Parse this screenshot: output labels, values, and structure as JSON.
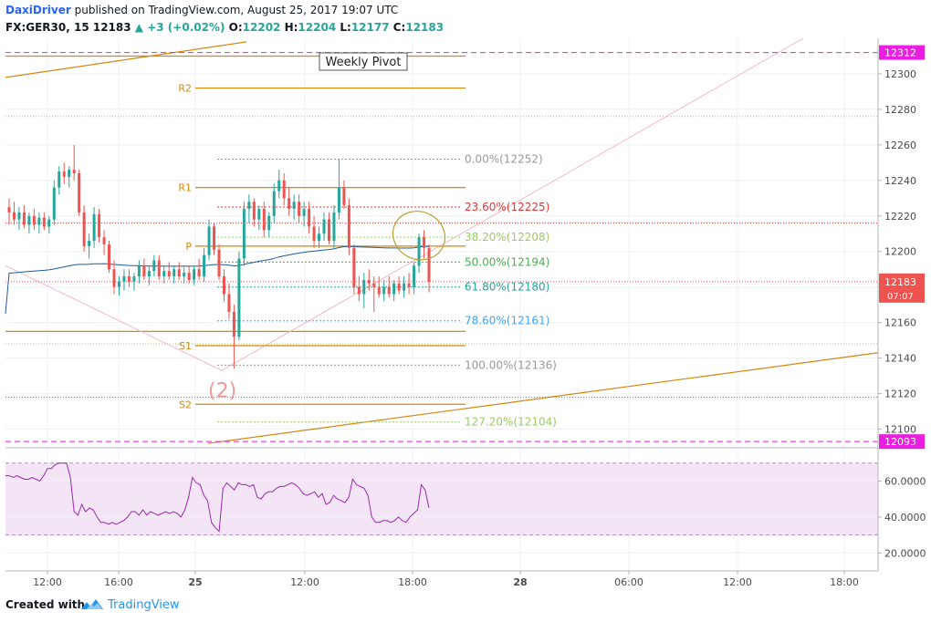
{
  "header": {
    "author": "DaxiDriver",
    "published_text": "published on TradingView.com, August 25, 2017 19:07 UTC",
    "symbol": "FX:GER30, 15",
    "last": "12183",
    "change": "▲ +3 (+0.02%)",
    "o_label": "O:",
    "o_value": "12202",
    "h_label": "H:",
    "h_value": "12204",
    "l_label": "L:",
    "l_value": "12177",
    "c_label": "C:",
    "c_value": "12183"
  },
  "footer": {
    "created_with": "Created with",
    "brand": "TradingView"
  },
  "colors": {
    "bull": "#26a69a",
    "bear": "#ef5350",
    "pivot": "#d4880f",
    "ma": "#1e5b9c",
    "rsi": "#9c27b0",
    "rsi_bg": "#f3e5f5",
    "magenta": "#e91ee0",
    "last_bg": "#ef5350"
  },
  "chart_data": [
    {
      "type": "candlestick",
      "symbol": "FX:GER30",
      "interval": "15",
      "ylim": [
        12090,
        12320
      ],
      "y_ticks": [
        "12300",
        "12280",
        "12260",
        "12240",
        "12220",
        "12200",
        "12180",
        "12160",
        "12140",
        "12120",
        "12100"
      ],
      "x_ticks": [
        "12:00",
        "16:00",
        "25",
        "12:00",
        "18:00",
        "28",
        "06:00",
        "12:00",
        "18:00"
      ],
      "last_price": "12183",
      "countdown": "07:07",
      "marked_prices": [
        "12312",
        "12093"
      ],
      "candles": [
        {
          "o": 12225,
          "h": 12230,
          "l": 12215,
          "c": 12222
        },
        {
          "o": 12222,
          "h": 12228,
          "l": 12215,
          "c": 12218
        },
        {
          "o": 12218,
          "h": 12225,
          "l": 12212,
          "c": 12222
        },
        {
          "o": 12222,
          "h": 12226,
          "l": 12213,
          "c": 12215
        },
        {
          "o": 12215,
          "h": 12222,
          "l": 12210,
          "c": 12220
        },
        {
          "o": 12220,
          "h": 12224,
          "l": 12212,
          "c": 12215
        },
        {
          "o": 12215,
          "h": 12222,
          "l": 12210,
          "c": 12219
        },
        {
          "o": 12219,
          "h": 12222,
          "l": 12212,
          "c": 12214
        },
        {
          "o": 12214,
          "h": 12220,
          "l": 12210,
          "c": 12218
        },
        {
          "o": 12218,
          "h": 12240,
          "l": 12215,
          "c": 12236
        },
        {
          "o": 12236,
          "h": 12248,
          "l": 12232,
          "c": 12245
        },
        {
          "o": 12245,
          "h": 12250,
          "l": 12238,
          "c": 12242
        },
        {
          "o": 12242,
          "h": 12248,
          "l": 12236,
          "c": 12246
        },
        {
          "o": 12246,
          "h": 12260,
          "l": 12240,
          "c": 12244
        },
        {
          "o": 12244,
          "h": 12246,
          "l": 12220,
          "c": 12222
        },
        {
          "o": 12222,
          "h": 12226,
          "l": 12200,
          "c": 12203
        },
        {
          "o": 12203,
          "h": 12210,
          "l": 12196,
          "c": 12206
        },
        {
          "o": 12206,
          "h": 12225,
          "l": 12202,
          "c": 12221
        },
        {
          "o": 12221,
          "h": 12224,
          "l": 12205,
          "c": 12208
        },
        {
          "o": 12208,
          "h": 12212,
          "l": 12198,
          "c": 12204
        },
        {
          "o": 12204,
          "h": 12206,
          "l": 12188,
          "c": 12190
        },
        {
          "o": 12190,
          "h": 12195,
          "l": 12176,
          "c": 12180
        },
        {
          "o": 12180,
          "h": 12186,
          "l": 12175,
          "c": 12183
        },
        {
          "o": 12183,
          "h": 12190,
          "l": 12178,
          "c": 12186
        },
        {
          "o": 12186,
          "h": 12190,
          "l": 12180,
          "c": 12183
        },
        {
          "o": 12183,
          "h": 12188,
          "l": 12178,
          "c": 12186
        },
        {
          "o": 12186,
          "h": 12195,
          "l": 12182,
          "c": 12192
        },
        {
          "o": 12192,
          "h": 12196,
          "l": 12184,
          "c": 12186
        },
        {
          "o": 12186,
          "h": 12192,
          "l": 12181,
          "c": 12189
        },
        {
          "o": 12189,
          "h": 12198,
          "l": 12186,
          "c": 12195
        },
        {
          "o": 12195,
          "h": 12198,
          "l": 12184,
          "c": 12186
        },
        {
          "o": 12186,
          "h": 12192,
          "l": 12182,
          "c": 12189
        },
        {
          "o": 12189,
          "h": 12194,
          "l": 12184,
          "c": 12186
        },
        {
          "o": 12186,
          "h": 12192,
          "l": 12182,
          "c": 12190
        },
        {
          "o": 12190,
          "h": 12194,
          "l": 12184,
          "c": 12186
        },
        {
          "o": 12186,
          "h": 12191,
          "l": 12182,
          "c": 12188
        },
        {
          "o": 12188,
          "h": 12192,
          "l": 12182,
          "c": 12184
        },
        {
          "o": 12184,
          "h": 12192,
          "l": 12181,
          "c": 12190
        },
        {
          "o": 12190,
          "h": 12196,
          "l": 12184,
          "c": 12186
        },
        {
          "o": 12186,
          "h": 12202,
          "l": 12183,
          "c": 12198
        },
        {
          "o": 12198,
          "h": 12218,
          "l": 12195,
          "c": 12214
        },
        {
          "o": 12214,
          "h": 12216,
          "l": 12198,
          "c": 12201
        },
        {
          "o": 12201,
          "h": 12204,
          "l": 12184,
          "c": 12186
        },
        {
          "o": 12186,
          "h": 12190,
          "l": 12172,
          "c": 12176
        },
        {
          "o": 12176,
          "h": 12182,
          "l": 12162,
          "c": 12166
        },
        {
          "o": 12166,
          "h": 12170,
          "l": 12134,
          "c": 12152
        },
        {
          "o": 12152,
          "h": 12200,
          "l": 12150,
          "c": 12196
        },
        {
          "o": 12196,
          "h": 12228,
          "l": 12192,
          "c": 12224
        },
        {
          "o": 12224,
          "h": 12232,
          "l": 12216,
          "c": 12228
        },
        {
          "o": 12228,
          "h": 12230,
          "l": 12214,
          "c": 12218
        },
        {
          "o": 12218,
          "h": 12226,
          "l": 12212,
          "c": 12224
        },
        {
          "o": 12224,
          "h": 12228,
          "l": 12208,
          "c": 12212
        },
        {
          "o": 12212,
          "h": 12222,
          "l": 12208,
          "c": 12220
        },
        {
          "o": 12220,
          "h": 12238,
          "l": 12216,
          "c": 12234
        },
        {
          "o": 12234,
          "h": 12246,
          "l": 12230,
          "c": 12240
        },
        {
          "o": 12240,
          "h": 12244,
          "l": 12226,
          "c": 12230
        },
        {
          "o": 12230,
          "h": 12236,
          "l": 12220,
          "c": 12224
        },
        {
          "o": 12224,
          "h": 12232,
          "l": 12218,
          "c": 12228
        },
        {
          "o": 12228,
          "h": 12232,
          "l": 12216,
          "c": 12220
        },
        {
          "o": 12220,
          "h": 12228,
          "l": 12214,
          "c": 12224
        },
        {
          "o": 12224,
          "h": 12228,
          "l": 12210,
          "c": 12214
        },
        {
          "o": 12214,
          "h": 12220,
          "l": 12202,
          "c": 12206
        },
        {
          "o": 12206,
          "h": 12214,
          "l": 12202,
          "c": 12210
        },
        {
          "o": 12210,
          "h": 12222,
          "l": 12206,
          "c": 12218
        },
        {
          "o": 12218,
          "h": 12222,
          "l": 12204,
          "c": 12206
        },
        {
          "o": 12206,
          "h": 12226,
          "l": 12202,
          "c": 12222
        },
        {
          "o": 12222,
          "h": 12252,
          "l": 12218,
          "c": 12236
        },
        {
          "o": 12236,
          "h": 12240,
          "l": 12224,
          "c": 12226
        },
        {
          "o": 12226,
          "h": 12230,
          "l": 12198,
          "c": 12202
        },
        {
          "o": 12202,
          "h": 12204,
          "l": 12176,
          "c": 12180
        },
        {
          "o": 12180,
          "h": 12186,
          "l": 12172,
          "c": 12176
        },
        {
          "o": 12176,
          "h": 12188,
          "l": 12168,
          "c": 12184
        },
        {
          "o": 12184,
          "h": 12190,
          "l": 12178,
          "c": 12182
        },
        {
          "o": 12182,
          "h": 12186,
          "l": 12166,
          "c": 12180
        },
        {
          "o": 12180,
          "h": 12186,
          "l": 12174,
          "c": 12176
        },
        {
          "o": 12176,
          "h": 12184,
          "l": 12172,
          "c": 12180
        },
        {
          "o": 12180,
          "h": 12186,
          "l": 12174,
          "c": 12176
        },
        {
          "o": 12176,
          "h": 12184,
          "l": 12172,
          "c": 12182
        },
        {
          "o": 12182,
          "h": 12186,
          "l": 12176,
          "c": 12178
        },
        {
          "o": 12178,
          "h": 12186,
          "l": 12174,
          "c": 12182
        },
        {
          "o": 12182,
          "h": 12188,
          "l": 12176,
          "c": 12180
        },
        {
          "o": 12180,
          "h": 12194,
          "l": 12176,
          "c": 12192
        },
        {
          "o": 12192,
          "h": 12210,
          "l": 12188,
          "c": 12208
        },
        {
          "o": 12208,
          "h": 12212,
          "l": 12196,
          "c": 12202
        },
        {
          "o": 12202,
          "h": 12204,
          "l": 12177,
          "c": 12183
        }
      ],
      "pivots": [
        {
          "label": "R2",
          "value": 12292
        },
        {
          "label": "R1",
          "value": 12236
        },
        {
          "label": "P",
          "value": 12203
        },
        {
          "label": "S1",
          "value": 12147
        },
        {
          "label": "S2",
          "value": 12114
        }
      ],
      "pivot_title": "Weekly Pivot",
      "fib_levels": [
        {
          "label": "0.00%(12252)",
          "value": 12252,
          "color": "#999999"
        },
        {
          "label": "23.60%(12225)",
          "value": 12225,
          "color": "#e53935"
        },
        {
          "label": "38.20%(12208)",
          "value": 12208,
          "color": "#9ccc65"
        },
        {
          "label": "50.00%(12194)",
          "value": 12194,
          "color": "#4caf50"
        },
        {
          "label": "61.80%(12180)",
          "value": 12180,
          "color": "#26a69a"
        },
        {
          "label": "78.60%(12161)",
          "value": 12161,
          "color": "#42a5f5"
        },
        {
          "label": "100.00%(12136)",
          "value": 12136,
          "color": "#999999"
        },
        {
          "label": "127.20%(12104)",
          "value": 12104,
          "color": "#9ccc65"
        }
      ],
      "wave_label": "(2)"
    },
    {
      "type": "line",
      "name": "RSI",
      "ylim": [
        10,
        78
      ],
      "y_ticks": [
        "60.0000",
        "40.0000",
        "20.0000"
      ],
      "bands": [
        30,
        70
      ],
      "values": [
        63,
        63,
        62,
        63,
        62,
        61,
        61,
        62,
        61,
        60,
        63,
        67,
        67,
        69,
        70,
        70,
        70,
        62,
        43,
        41,
        47,
        43,
        45,
        44,
        40,
        37,
        37,
        36,
        37,
        36,
        37,
        38,
        40,
        43,
        43,
        41,
        44,
        41,
        43,
        42,
        41,
        42,
        43,
        42,
        43,
        42,
        40,
        44,
        51,
        62,
        59,
        58,
        52,
        49,
        37,
        34,
        32,
        56,
        59,
        57,
        55,
        59,
        58,
        58,
        57,
        58,
        51,
        50,
        53,
        54,
        54,
        56,
        57,
        57,
        58,
        59,
        58,
        56,
        53,
        52,
        53,
        54,
        51,
        53,
        47,
        48,
        52,
        50,
        49,
        48,
        51,
        61,
        58,
        57,
        56,
        52,
        40,
        37,
        37,
        38,
        38,
        37,
        38,
        40,
        38,
        37,
        40,
        42,
        44,
        58,
        55,
        45
      ]
    }
  ]
}
